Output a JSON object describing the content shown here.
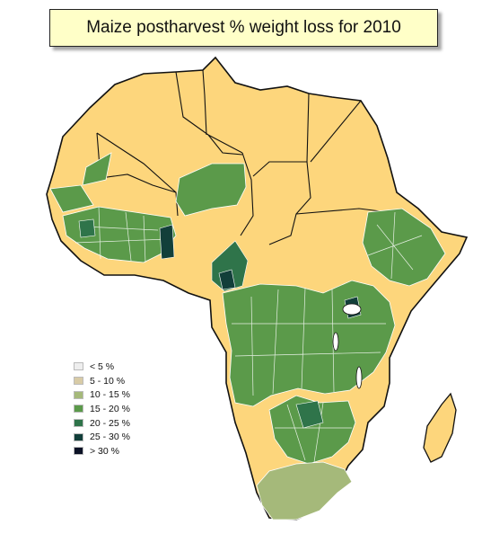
{
  "map": {
    "title": "Maize postharvest % weight loss for 2010",
    "legend": [
      {
        "label": "< 5 %",
        "color": "#eeeeee"
      },
      {
        "label": "5 - 10 %",
        "color": "#d8cba6"
      },
      {
        "label": "10 - 15 %",
        "color": "#a5b97a"
      },
      {
        "label": "15 - 20 %",
        "color": "#5b9a4a"
      },
      {
        "label": "20 - 25 %",
        "color": "#2f744a"
      },
      {
        "label": "25 - 30 %",
        "color": "#123f3a"
      },
      {
        "label": "> 30 %",
        "color": "#0c1226"
      }
    ],
    "no_data_color": "#fdd67c"
  }
}
